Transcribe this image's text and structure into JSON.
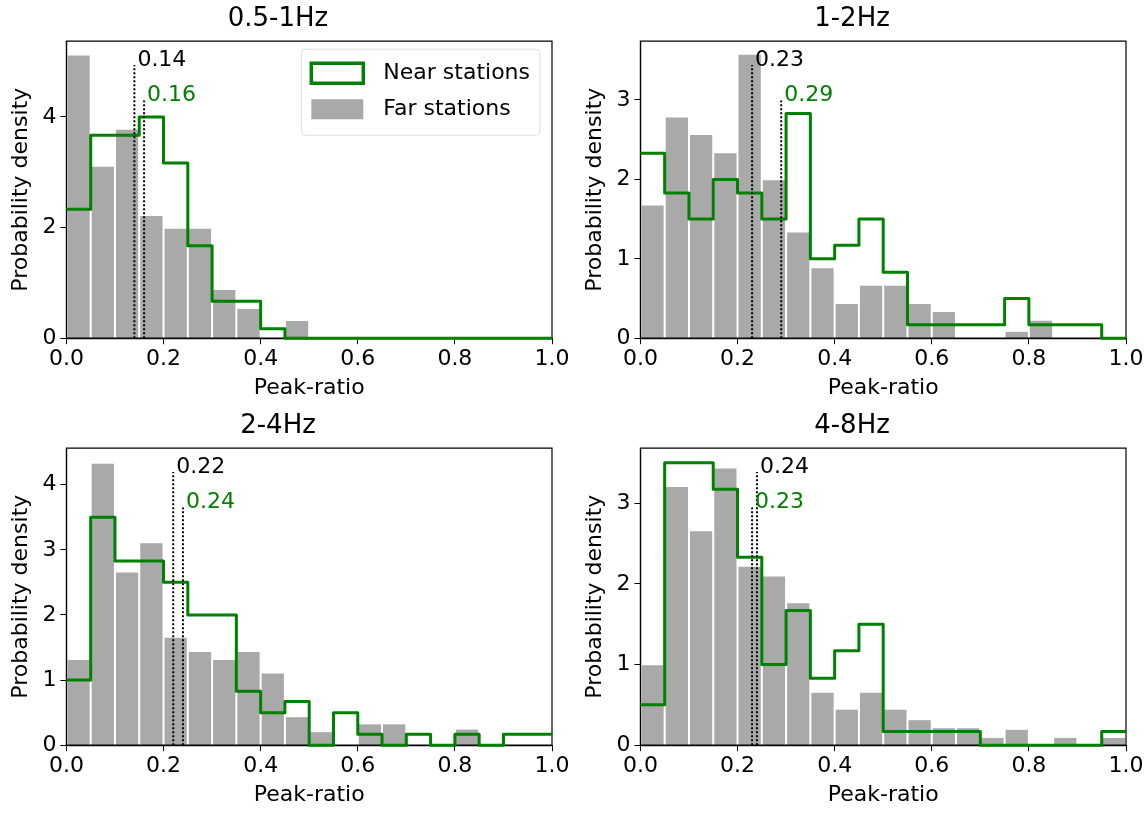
{
  "chart_data": [
    {
      "type": "histogram",
      "title": "0.5-1Hz",
      "xlabel": "Peak-ratio",
      "ylabel": "Probability density",
      "bins": [
        0,
        0.05,
        0.1,
        0.15,
        0.2,
        0.25,
        0.3,
        0.35,
        0.4,
        0.45,
        0.5,
        0.55,
        0.6,
        0.65,
        0.7,
        0.75,
        0.8,
        0.85,
        0.9,
        0.95,
        1.0
      ],
      "series": [
        {
          "name": "Near stations",
          "type": "step",
          "color": "#008000",
          "x": [
            0,
            0.05,
            0.1,
            0.15,
            0.2,
            0.25,
            0.3,
            0.35,
            0.4,
            0.45,
            0.5,
            0.55,
            0.6,
            0.65,
            0.7,
            0.75,
            0.8,
            0.85,
            0.9,
            0.95,
            1.0
          ],
          "values": [
            2.33,
            3.67,
            3.67,
            4.0,
            3.17,
            1.67,
            0.67,
            0.67,
            0.17,
            0,
            0,
            0,
            0,
            0,
            0,
            0,
            0,
            0,
            0,
            0,
            0
          ]
        },
        {
          "name": "Far stations",
          "color": "#a9a9a9",
          "values": [
            5.11,
            3.1,
            3.77,
            2.21,
            1.98,
            1.98,
            0.87,
            0.53,
            0,
            0.31,
            0,
            0,
            0,
            0,
            0,
            0,
            0,
            0,
            0,
            0
          ]
        }
      ],
      "xlim": [
        0,
        1
      ],
      "xticks": [
        {
          "value": 0,
          "label": "0.0"
        },
        {
          "value": 0.2,
          "label": "0.2"
        },
        {
          "value": 0.4,
          "label": "0.4"
        },
        {
          "value": 0.6,
          "label": "0.6"
        },
        {
          "value": 0.8,
          "label": "0.8"
        },
        {
          "value": 1,
          "label": "1.0"
        }
      ],
      "ylim": [
        0,
        5.37
      ],
      "yticks": [
        0,
        2,
        4
      ],
      "ref_lines": [
        {
          "axis": "x",
          "value": 0.14,
          "label": "0.14",
          "line_style": "dotted"
        },
        {
          "axis": "x",
          "value": 0.16,
          "label": "0.16",
          "line_style": "dotted"
        }
      ],
      "legend": "top right",
      "grid": false
    },
    {
      "type": "histogram",
      "title": "1-2Hz",
      "xlabel": "Peak-ratio",
      "ylabel": "Probability density",
      "bins": [
        0,
        0.05,
        0.1,
        0.15,
        0.2,
        0.25,
        0.3,
        0.35,
        0.4,
        0.45,
        0.5,
        0.55,
        0.6,
        0.65,
        0.7,
        0.75,
        0.8,
        0.85,
        0.9,
        0.95,
        1.0
      ],
      "series": [
        {
          "type": "step",
          "color": "#008000",
          "x": [
            0,
            0.05,
            0.1,
            0.15,
            0.2,
            0.25,
            0.3,
            0.35,
            0.4,
            0.45,
            0.5,
            0.55,
            0.6,
            0.65,
            0.7,
            0.75,
            0.8,
            0.85,
            0.9,
            0.95,
            1.0
          ],
          "values": [
            2.33,
            1.83,
            1.5,
            2.0,
            1.83,
            1.5,
            2.83,
            1.0,
            1.17,
            1.5,
            0.83,
            0.17,
            0.17,
            0.17,
            0.17,
            0.5,
            0.17,
            0.17,
            0.17,
            0,
            0
          ]
        },
        {
          "color": "#a9a9a9",
          "values": [
            1.67,
            2.78,
            2.56,
            2.33,
            3.57,
            1.99,
            1.33,
            0.88,
            0.43,
            0.66,
            0.66,
            0.43,
            0.33,
            0,
            0,
            0.08,
            0.22,
            0,
            0,
            0
          ]
        }
      ],
      "xlim": [
        0,
        1
      ],
      "xticks": [
        {
          "value": 0,
          "label": "0.0"
        },
        {
          "value": 0.2,
          "label": "0.2"
        },
        {
          "value": 0.4,
          "label": "0.4"
        },
        {
          "value": 0.6,
          "label": "0.6"
        },
        {
          "value": 0.8,
          "label": "0.8"
        },
        {
          "value": 1,
          "label": "1.0"
        }
      ],
      "ylim": [
        0,
        3.74
      ],
      "yticks": [
        0,
        1,
        2,
        3
      ],
      "ref_lines": [
        {
          "axis": "x",
          "value": 0.23,
          "label": "0.23",
          "line_style": "dotted"
        },
        {
          "axis": "x",
          "value": 0.29,
          "label": "0.29",
          "line_style": "dotted"
        }
      ],
      "grid": false
    },
    {
      "type": "histogram",
      "title": "2-4Hz",
      "xlabel": "Peak-ratio",
      "ylabel": "Probability density",
      "bins": [
        0,
        0.05,
        0.1,
        0.15,
        0.2,
        0.25,
        0.3,
        0.35,
        0.4,
        0.45,
        0.5,
        0.55,
        0.6,
        0.65,
        0.7,
        0.75,
        0.8,
        0.85,
        0.9,
        0.95,
        1.0
      ],
      "series": [
        {
          "type": "step",
          "color": "#008000",
          "x": [
            0,
            0.05,
            0.1,
            0.15,
            0.2,
            0.25,
            0.3,
            0.35,
            0.4,
            0.45,
            0.5,
            0.55,
            0.6,
            0.65,
            0.7,
            0.75,
            0.8,
            0.85,
            0.9,
            0.95,
            1.0
          ],
          "values": [
            1.0,
            3.5,
            2.83,
            2.83,
            2.5,
            2.0,
            2.0,
            0.83,
            0.5,
            0.67,
            0,
            0.5,
            0.17,
            0,
            0.17,
            0,
            0.17,
            0,
            0.17,
            0.17,
            0.17
          ]
        },
        {
          "color": "#a9a9a9",
          "values": [
            1.31,
            4.32,
            2.65,
            3.1,
            1.65,
            1.43,
            1.31,
            1.43,
            1.1,
            0.43,
            0.2,
            0,
            0.32,
            0.32,
            0,
            0,
            0.24,
            0,
            0,
            0
          ]
        }
      ],
      "xlim": [
        0,
        1
      ],
      "xticks": [
        {
          "value": 0,
          "label": "0.0"
        },
        {
          "value": 0.2,
          "label": "0.2"
        },
        {
          "value": 0.4,
          "label": "0.4"
        },
        {
          "value": 0.6,
          "label": "0.6"
        },
        {
          "value": 0.8,
          "label": "0.8"
        },
        {
          "value": 1,
          "label": "1.0"
        }
      ],
      "ylim": [
        0,
        4.56
      ],
      "yticks": [
        0,
        1,
        2,
        3,
        4
      ],
      "ref_lines": [
        {
          "axis": "x",
          "value": 0.22,
          "label": "0.22",
          "line_style": "dotted"
        },
        {
          "axis": "x",
          "value": 0.24,
          "label": "0.24",
          "line_style": "dotted"
        }
      ],
      "grid": false
    },
    {
      "type": "histogram",
      "title": "4-8Hz",
      "xlabel": "Peak-ratio",
      "ylabel": "Probability density",
      "bins": [
        0,
        0.05,
        0.1,
        0.15,
        0.2,
        0.25,
        0.3,
        0.35,
        0.4,
        0.45,
        0.5,
        0.55,
        0.6,
        0.65,
        0.7,
        0.75,
        0.8,
        0.85,
        0.9,
        0.95,
        1.0
      ],
      "series": [
        {
          "type": "step",
          "color": "#008000",
          "x": [
            0,
            0.05,
            0.1,
            0.15,
            0.2,
            0.25,
            0.3,
            0.35,
            0.4,
            0.45,
            0.5,
            0.55,
            0.6,
            0.65,
            0.7,
            0.75,
            0.8,
            0.85,
            0.9,
            0.95,
            1.0
          ],
          "values": [
            0.5,
            3.5,
            3.5,
            3.17,
            2.33,
            1.0,
            1.67,
            0.83,
            1.17,
            1.5,
            0.17,
            0.17,
            0.17,
            0.17,
            0,
            0,
            0,
            0,
            0,
            0.17,
            0.17
          ]
        },
        {
          "color": "#a9a9a9",
          "values": [
            0.99,
            3.2,
            2.65,
            3.43,
            2.21,
            2.09,
            1.76,
            0.65,
            0.44,
            0.65,
            0.44,
            0.31,
            0.21,
            0.21,
            0.09,
            0.19,
            0,
            0.09,
            0,
            0.09
          ]
        }
      ],
      "xlim": [
        0,
        1
      ],
      "xticks": [
        {
          "value": 0,
          "label": "0.0"
        },
        {
          "value": 0.2,
          "label": "0.2"
        },
        {
          "value": 0.4,
          "label": "0.4"
        },
        {
          "value": 0.6,
          "label": "0.6"
        },
        {
          "value": 0.8,
          "label": "0.8"
        },
        {
          "value": 1,
          "label": "1.0"
        }
      ],
      "ylim": [
        0,
        3.68
      ],
      "yticks": [
        0,
        1,
        2,
        3
      ],
      "ref_lines": [
        {
          "axis": "x",
          "value": 0.24,
          "label": "0.24",
          "line_style": "dotted"
        },
        {
          "axis": "x",
          "value": 0.23,
          "label": "0.23",
          "line_style": "dotted"
        }
      ],
      "grid": false
    }
  ]
}
